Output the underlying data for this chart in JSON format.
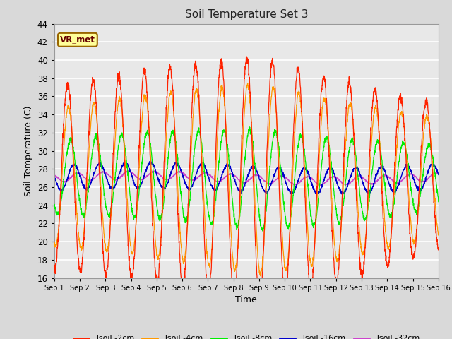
{
  "title": "Soil Temperature Set 3",
  "xlabel": "Time",
  "ylabel": "Soil Temperature (C)",
  "ylim": [
    16,
    44
  ],
  "yticks": [
    16,
    18,
    20,
    22,
    24,
    26,
    28,
    30,
    32,
    34,
    36,
    38,
    40,
    42,
    44
  ],
  "xlim": [
    0,
    15
  ],
  "xtick_labels": [
    "Sep 1",
    "Sep 2",
    "Sep 3",
    "Sep 4",
    "Sep 5",
    "Sep 6",
    "Sep 7",
    "Sep 8",
    "Sep 9",
    "Sep 10",
    "Sep 11",
    "Sep 12",
    "Sep 13",
    "Sep 14",
    "Sep 15",
    "Sep 16"
  ],
  "annotation_text": "VR_met",
  "annotation_bg": "#ffff99",
  "annotation_border": "#996600",
  "fig_bg": "#d9d9d9",
  "plot_bg": "#e8e8e8",
  "grid_color": "white",
  "colors": {
    "2cm": "#ff2200",
    "4cm": "#ff9900",
    "8cm": "#00ee00",
    "16cm": "#0000cc",
    "32cm": "#cc44cc"
  },
  "legend": [
    "Tsoil -2cm",
    "Tsoil -4cm",
    "Tsoil -8cm",
    "Tsoil -16cm",
    "Tsoil -32cm"
  ],
  "n_days": 15,
  "points_per_day": 144,
  "base_mean": 27.0,
  "amp2_start": 10.0,
  "amp2_peak": 13.5,
  "amp2_end": 8.0,
  "amp4_start": 7.5,
  "amp4_peak": 10.5,
  "amp4_end": 6.5,
  "amp8_start": 4.0,
  "amp8_peak": 5.5,
  "amp8_end": 3.5,
  "amp16": 1.4,
  "amp32": 0.45,
  "phase2": 0.27,
  "phase4": 0.3,
  "phase8": 0.38,
  "phase16": 0.52,
  "phase32": 0.65
}
